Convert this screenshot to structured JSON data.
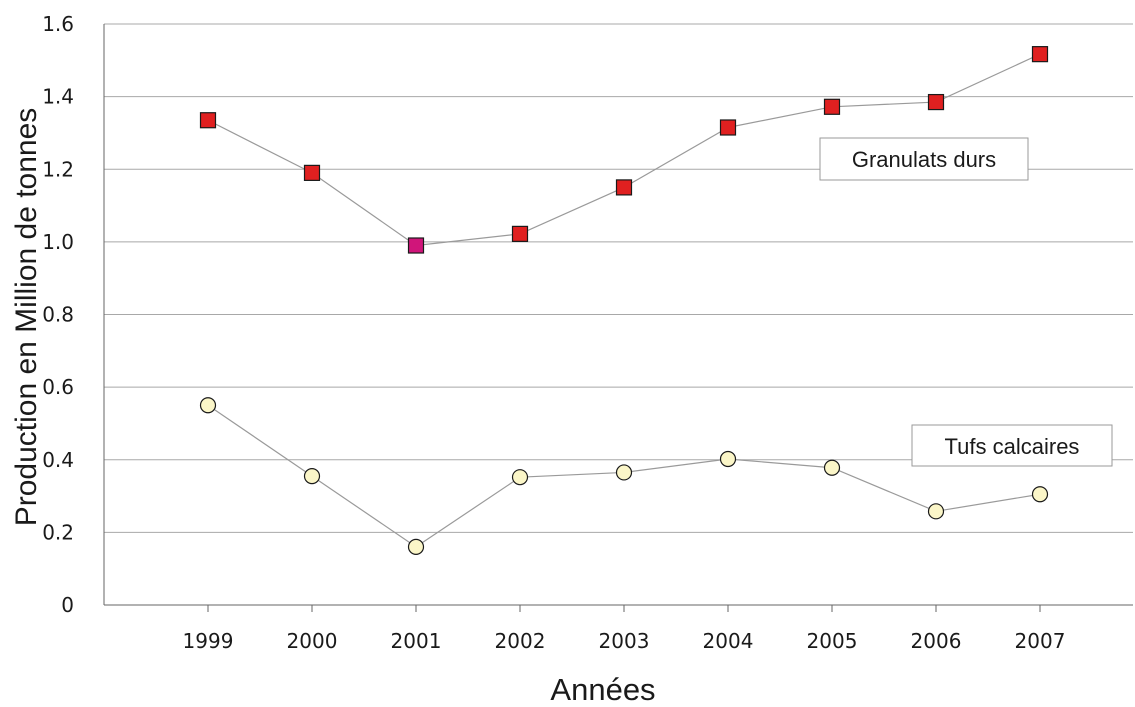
{
  "chart_data": {
    "type": "line",
    "title": "",
    "xlabel": "Années",
    "ylabel": "Production en Million de tonnes",
    "x": [
      "1999",
      "2000",
      "2001",
      "2002",
      "2003",
      "2004",
      "2005",
      "2006",
      "2007"
    ],
    "ylim": [
      0,
      1.6
    ],
    "yticks": [
      "0",
      "0.2",
      "0.4",
      "0.6",
      "0.8",
      "1.0",
      "1.2",
      "1.4",
      "1.6"
    ],
    "grid": true,
    "series": [
      {
        "name": "Granulats durs",
        "values": [
          1.335,
          1.19,
          0.99,
          1.022,
          1.15,
          1.315,
          1.372,
          1.385,
          1.517
        ],
        "marker": "square",
        "marker_color": "#e02020",
        "highlight_index": 2,
        "highlight_color": "#d0157a"
      },
      {
        "name": "Tufs calcaires",
        "values": [
          0.55,
          0.355,
          0.16,
          0.352,
          0.365,
          0.402,
          0.378,
          0.258,
          0.305
        ],
        "marker": "circle",
        "marker_color": "#fbf6c8"
      }
    ],
    "line_color": "#9a9a9a",
    "grid_color": "#a8a8a8"
  }
}
